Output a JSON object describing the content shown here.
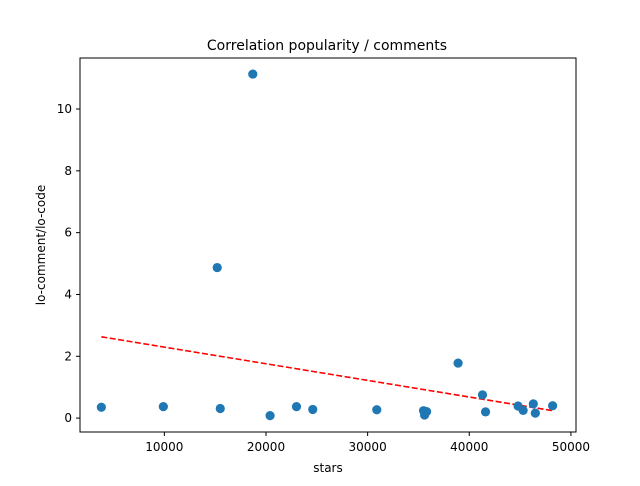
{
  "chart_data": {
    "type": "scatter",
    "title": "Correlation popularity / comments",
    "xlabel": "stars",
    "ylabel": "lo-comment/lo-code",
    "xlim": [
      1700,
      50500
    ],
    "ylim": [
      -0.45,
      11.65
    ],
    "xticks": [
      10000,
      20000,
      30000,
      40000,
      50000
    ],
    "yticks": [
      0,
      2,
      4,
      6,
      8,
      10
    ],
    "grid": false,
    "points": [
      {
        "x": 3800,
        "y": 0.35
      },
      {
        "x": 9900,
        "y": 0.37
      },
      {
        "x": 15200,
        "y": 4.87
      },
      {
        "x": 15500,
        "y": 0.31
      },
      {
        "x": 18700,
        "y": 11.13
      },
      {
        "x": 20400,
        "y": 0.08
      },
      {
        "x": 23000,
        "y": 0.37
      },
      {
        "x": 24600,
        "y": 0.28
      },
      {
        "x": 30900,
        "y": 0.27
      },
      {
        "x": 35500,
        "y": 0.24
      },
      {
        "x": 35600,
        "y": 0.1
      },
      {
        "x": 35800,
        "y": 0.21
      },
      {
        "x": 38900,
        "y": 1.78
      },
      {
        "x": 41300,
        "y": 0.75
      },
      {
        "x": 41600,
        "y": 0.2
      },
      {
        "x": 44800,
        "y": 0.39
      },
      {
        "x": 45300,
        "y": 0.25
      },
      {
        "x": 46300,
        "y": 0.46
      },
      {
        "x": 46500,
        "y": 0.16
      },
      {
        "x": 48200,
        "y": 0.4
      }
    ],
    "trendline": {
      "style": "dashed",
      "color": "#ff0000",
      "x": [
        3800,
        48200
      ],
      "y": [
        2.63,
        0.24
      ]
    },
    "marker_color": "#1f77b4"
  }
}
